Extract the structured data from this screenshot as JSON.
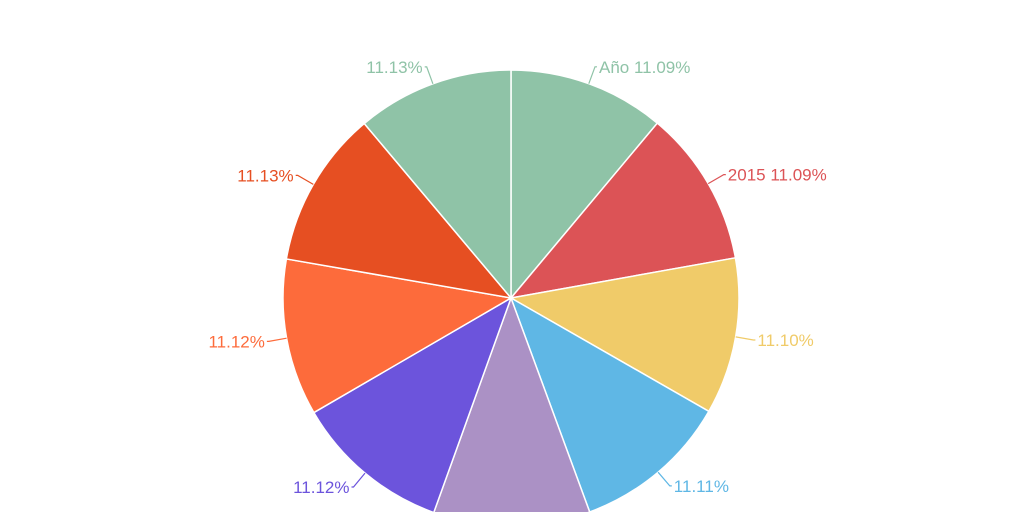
{
  "chart_data": {
    "type": "pie",
    "slices": [
      {
        "label": "Año 11.09%",
        "value": 11.09,
        "color": "#8fc3a7"
      },
      {
        "label": "2015 11.09%",
        "value": 11.09,
        "color": "#dc5356"
      },
      {
        "label": "11.10%",
        "value": 11.1,
        "color": "#f0cb69"
      },
      {
        "label": "11.11%",
        "value": 11.11,
        "color": "#5fb7e5"
      },
      {
        "label": "",
        "value": 11.11,
        "color": "#ab91c5"
      },
      {
        "label": "11.12%",
        "value": 11.12,
        "color": "#6c54dc"
      },
      {
        "label": "11.12%",
        "value": 11.12,
        "color": "#fd6b3b"
      },
      {
        "label": "11.13%",
        "value": 11.13,
        "color": "#e64f22"
      },
      {
        "label": "11.13%",
        "value": 11.13,
        "color": "#8fc3a7"
      }
    ]
  }
}
